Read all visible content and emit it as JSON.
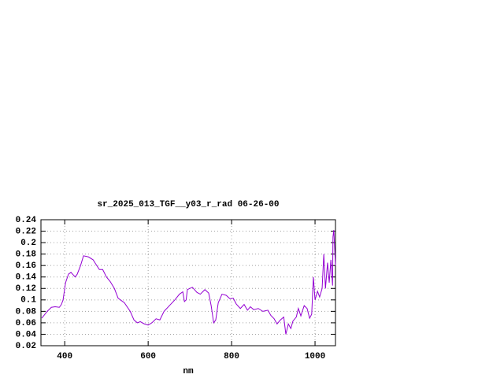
{
  "chart_data": {
    "type": "line",
    "title": "sr_2025_013_TGF__y03_r_rad 06-26-00",
    "x_label": "nm",
    "xlim": [
      343,
      1049
    ],
    "xticks": [
      400,
      600,
      800,
      1000
    ],
    "ylim": [
      0.02,
      0.24
    ],
    "yticks": [
      0.02,
      0.04,
      0.06,
      0.08,
      0.1,
      0.12,
      0.14,
      0.16,
      0.18,
      0.2,
      0.22,
      0.24
    ],
    "grid": true,
    "series": [
      {
        "color": "#9400d3",
        "x": [
          345,
          358,
          368,
          377,
          387,
          392,
          396,
          402,
          409,
          415,
          425,
          430,
          438,
          445,
          457,
          468,
          475,
          483,
          491,
          500,
          509,
          519,
          528,
          543,
          557,
          566,
          574,
          581,
          591,
          600,
          609,
          619,
          628,
          638,
          651,
          664,
          675,
          683,
          687,
          691,
          694,
          706,
          717,
          725,
          736,
          745,
          751,
          757,
          762,
          768,
          777,
          787,
          796,
          804,
          811,
          821,
          830,
          838,
          845,
          853,
          864,
          875,
          887,
          894,
          902,
          909,
          917,
          925,
          930,
          936,
          942,
          947,
          955,
          960,
          966,
          974,
          981,
          987,
          992,
          996,
          1000,
          1006,
          1011,
          1017,
          1021,
          1025,
          1030,
          1034,
          1038,
          1042,
          1043,
          1045,
          1049
        ],
        "values": [
          0.068,
          0.08,
          0.087,
          0.088,
          0.087,
          0.092,
          0.1,
          0.13,
          0.145,
          0.148,
          0.14,
          0.145,
          0.16,
          0.177,
          0.175,
          0.17,
          0.162,
          0.153,
          0.153,
          0.14,
          0.132,
          0.12,
          0.103,
          0.095,
          0.08,
          0.065,
          0.06,
          0.062,
          0.058,
          0.056,
          0.06,
          0.067,
          0.065,
          0.08,
          0.09,
          0.1,
          0.11,
          0.114,
          0.097,
          0.1,
          0.118,
          0.122,
          0.113,
          0.11,
          0.118,
          0.112,
          0.09,
          0.06,
          0.065,
          0.095,
          0.11,
          0.108,
          0.102,
          0.103,
          0.093,
          0.085,
          0.092,
          0.082,
          0.088,
          0.083,
          0.085,
          0.08,
          0.082,
          0.073,
          0.067,
          0.058,
          0.065,
          0.07,
          0.04,
          0.058,
          0.05,
          0.063,
          0.07,
          0.085,
          0.072,
          0.09,
          0.085,
          0.068,
          0.075,
          0.14,
          0.1,
          0.115,
          0.105,
          0.12,
          0.18,
          0.12,
          0.165,
          0.13,
          0.17,
          0.125,
          0.21,
          0.222,
          0.16
        ]
      }
    ]
  }
}
